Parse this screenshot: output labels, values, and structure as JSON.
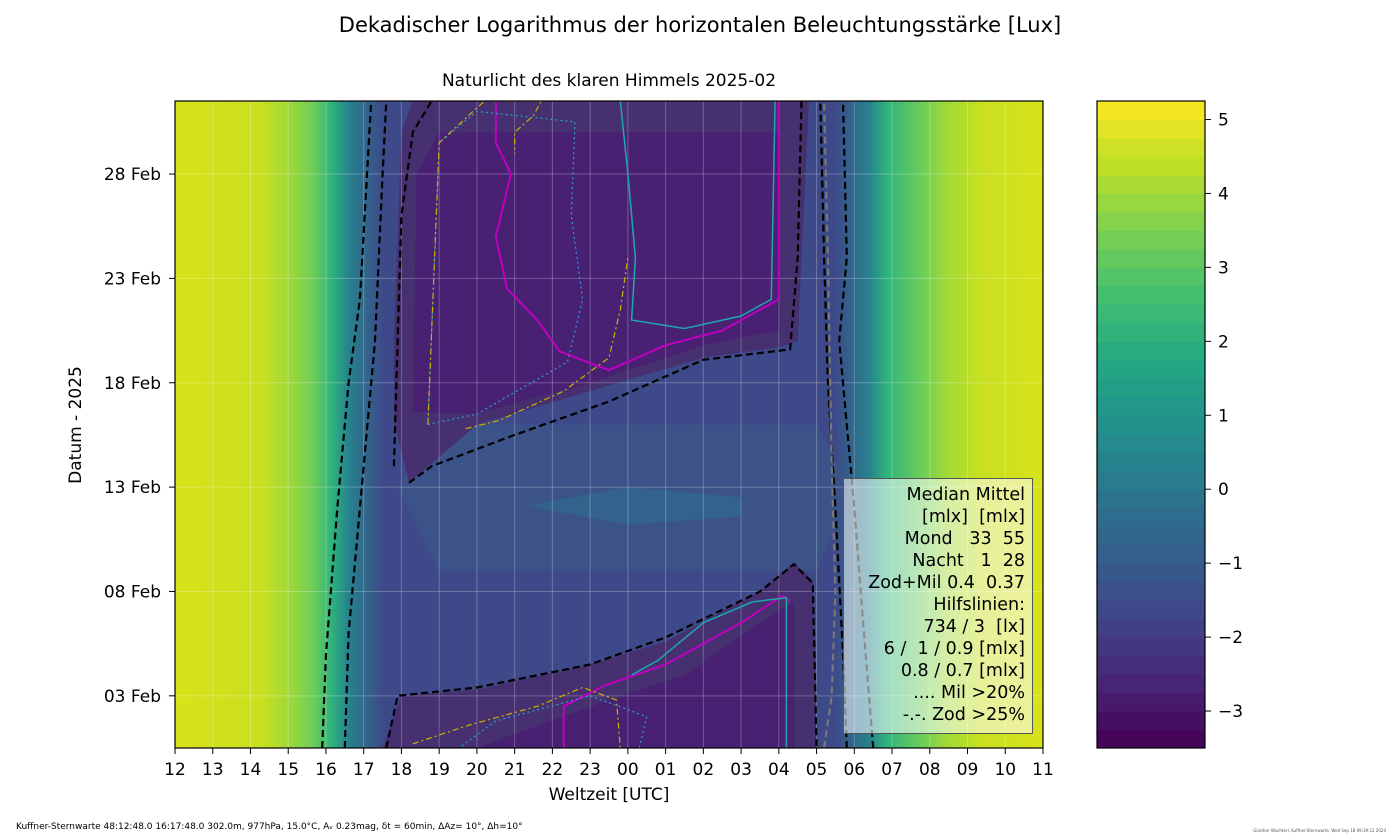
{
  "chart_data": {
    "type": "heatmap",
    "title": "Dekadischer Logarithmus der horizontalen Beleuchtungsstärke [Lux]",
    "subtitle": "Naturlicht des klaren Himmels 2025-02",
    "xlabel": "Weltzeit [UTC]",
    "ylabel": "Datum - 2025",
    "x_ticks": [
      "12",
      "13",
      "14",
      "15",
      "16",
      "17",
      "18",
      "19",
      "20",
      "21",
      "22",
      "23",
      "00",
      "01",
      "02",
      "03",
      "04",
      "05",
      "06",
      "07",
      "08",
      "09",
      "10",
      "11"
    ],
    "y_ticks": [
      "03 Feb",
      "08 Feb",
      "13 Feb",
      "18 Feb",
      "23 Feb",
      "28 Feb"
    ],
    "y_tick_days": [
      3,
      8,
      13,
      18,
      23,
      28
    ],
    "y_range_days": [
      0.5,
      31.5
    ],
    "colorbar_ticks": [
      "5",
      "4",
      "3",
      "2",
      "1",
      "0",
      "−1",
      "−2",
      "−3"
    ],
    "colorbar_values": [
      5,
      4,
      3,
      2,
      1,
      0,
      -1,
      -2,
      -3
    ],
    "colorbar_range": [
      -3.5,
      5.25
    ],
    "colormap": "viridis",
    "grid": true,
    "legend_position": "lower-right",
    "legend_lines": [
      "Median Mittel",
      "[mlx]  [mlx]",
      "Mond   33  55",
      "Nacht   1  28",
      "Zod+Mil 0.4  0.37",
      "Hilfslinien:",
      "734 / 3  [lx]",
      "6 /  1 / 0.9 [mlx]",
      "0.8 / 0.7 [mlx]",
      ".... Mil >20%",
      "-.-. Zod >25%"
    ],
    "contour_colors": {
      "dashed_main": "#000000",
      "dashed_second": "#777777",
      "magenta": "#c000c0",
      "cyan": "#1fa6b0",
      "dotted": "#2a9fd6",
      "dashdot": "#c8b400"
    }
  },
  "footer": "Kuffner-Sternwarte 48:12:48.0 16:17:48.0 302.0m,  977hPa, 15.0°C, Aᵥ 0.23mag, δt = 60min, ΔAz= 10°, Δh=10°",
  "credit": "Günther Wuchterl, Kuffner-Sternwarte, Wed Sep 18 09:39:12 2024"
}
